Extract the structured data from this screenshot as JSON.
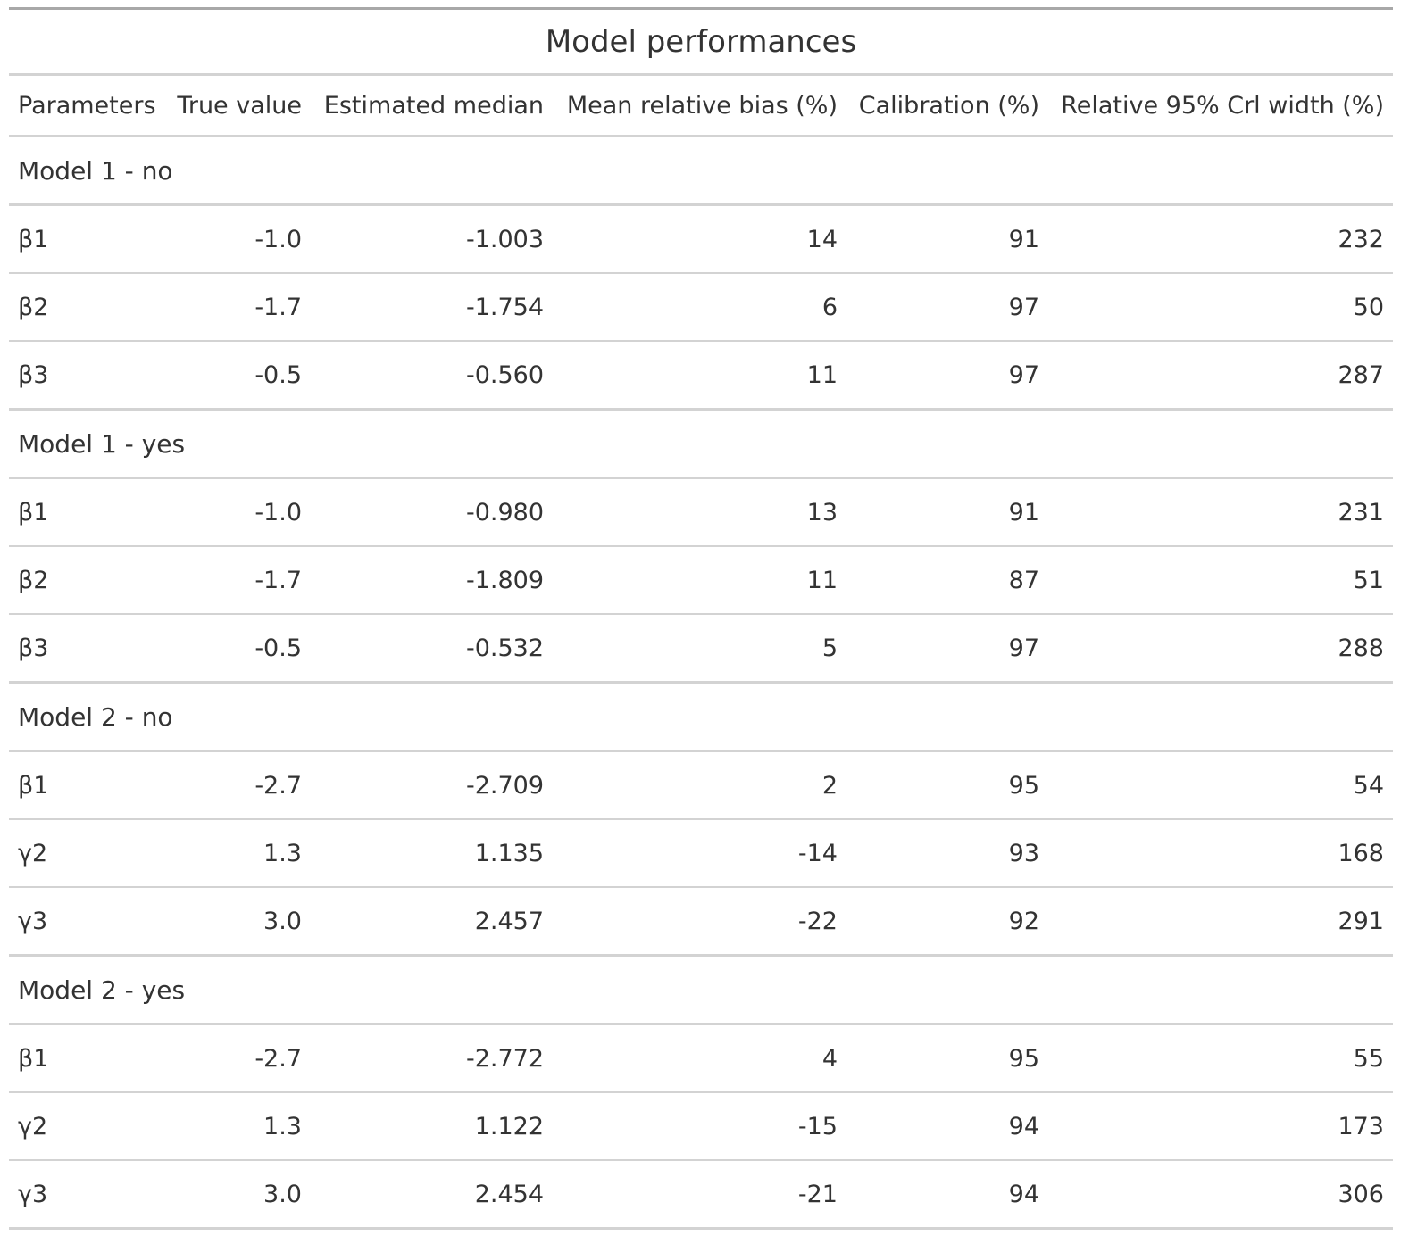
{
  "title": "Model performances",
  "columns": [
    "Parameters",
    "True value",
    "Estimated median",
    "Mean relative bias (%)",
    "Calibration (%)",
    "Relative 95% Crl width (%)"
  ],
  "groups": [
    {
      "label": "Model 1 - no",
      "rows": [
        [
          "β1",
          "-1.0",
          "-1.003",
          "14",
          "91",
          "232"
        ],
        [
          "β2",
          "-1.7",
          "-1.754",
          "6",
          "97",
          "50"
        ],
        [
          "β3",
          "-0.5",
          "-0.560",
          "11",
          "97",
          "287"
        ]
      ]
    },
    {
      "label": "Model 1 - yes",
      "rows": [
        [
          "β1",
          "-1.0",
          "-0.980",
          "13",
          "91",
          "231"
        ],
        [
          "β2",
          "-1.7",
          "-1.809",
          "11",
          "87",
          "51"
        ],
        [
          "β3",
          "-0.5",
          "-0.532",
          "5",
          "97",
          "288"
        ]
      ]
    },
    {
      "label": "Model 2 - no",
      "rows": [
        [
          "β1",
          "-2.7",
          "-2.709",
          "2",
          "95",
          "54"
        ],
        [
          "γ2",
          "1.3",
          "1.135",
          "-14",
          "93",
          "168"
        ],
        [
          "γ3",
          "3.0",
          "2.457",
          "-22",
          "92",
          "291"
        ]
      ]
    },
    {
      "label": "Model 2 - yes",
      "rows": [
        [
          "β1",
          "-2.7",
          "-2.772",
          "4",
          "95",
          "55"
        ],
        [
          "γ2",
          "1.3",
          "1.122",
          "-15",
          "94",
          "173"
        ],
        [
          "γ3",
          "3.0",
          "2.454",
          "-21",
          "94",
          "306"
        ]
      ]
    }
  ]
}
